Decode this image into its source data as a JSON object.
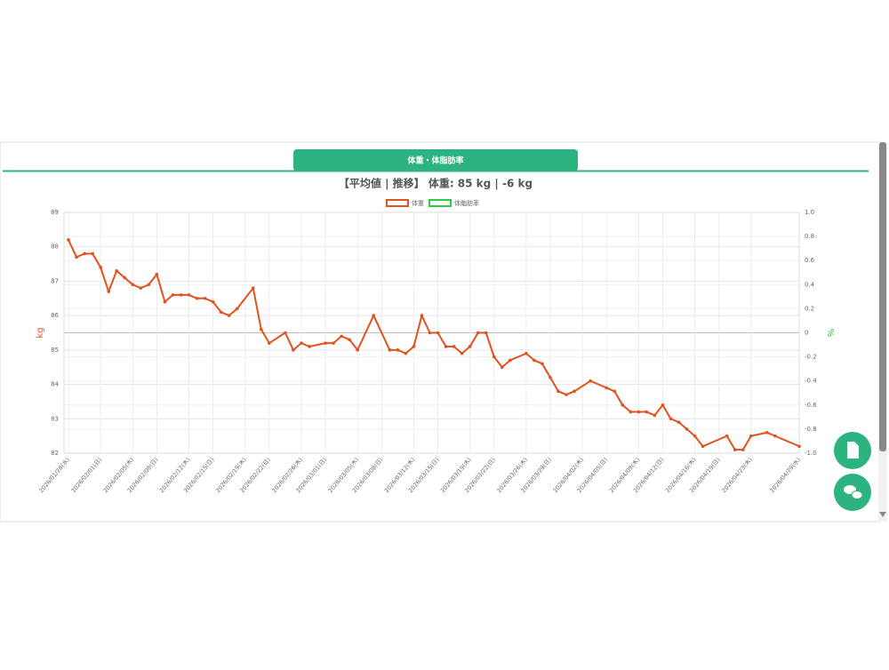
{
  "tab": "体重・体脂肪率",
  "chart_data": {
    "type": "line",
    "title": "【平均値 | 推移】 体重: 85 kg | -6 kg",
    "ylabel": "kg",
    "y2label": "%",
    "x": [
      "2026-01-28",
      "2026-01-29",
      "2026-01-30",
      "2026-01-31",
      "2026-02-01",
      "2026-02-02",
      "2026-02-03",
      "2026-02-04",
      "2026-02-05",
      "2026-02-06",
      "2026-02-07",
      "2026-02-08",
      "2026-02-09",
      "2026-02-10",
      "2026-02-11",
      "2026-02-12",
      "2026-02-13",
      "2026-02-14",
      "2026-02-15",
      "2026-02-16",
      "2026-02-17",
      "2026-02-18",
      "2026-02-20",
      "2026-02-21",
      "2026-02-22",
      "2026-02-24",
      "2026-02-25",
      "2026-02-26",
      "2026-02-27",
      "2026-03-01",
      "2026-03-02",
      "2026-03-03",
      "2026-03-04",
      "2026-03-05",
      "2026-03-07",
      "2026-03-09",
      "2026-03-10",
      "2026-03-11",
      "2026-03-12",
      "2026-03-13",
      "2026-03-14",
      "2026-03-15",
      "2026-03-16",
      "2026-03-17",
      "2026-03-18",
      "2026-03-19",
      "2026-03-20",
      "2026-03-21",
      "2026-03-22",
      "2026-03-23",
      "2026-03-24",
      "2026-03-26",
      "2026-03-27",
      "2026-03-28",
      "2026-03-29",
      "2026-03-30",
      "2026-03-31",
      "2026-04-01",
      "2026-04-03",
      "2026-04-05",
      "2026-04-06",
      "2026-04-07",
      "2026-04-08",
      "2026-04-09",
      "2026-04-10",
      "2026-04-11",
      "2026-04-12",
      "2026-04-13",
      "2026-04-14",
      "2026-04-15",
      "2026-04-16",
      "2026-04-17",
      "2026-04-20",
      "2026-04-21",
      "2026-04-22",
      "2026-04-23",
      "2026-04-25",
      "2026-04-26",
      "2026-04-29"
    ],
    "series": [
      {
        "name": "体重",
        "color": "#e0531f",
        "values": [
          88.2,
          87.7,
          87.8,
          87.8,
          87.4,
          86.7,
          87.3,
          87.1,
          86.9,
          86.8,
          86.9,
          87.2,
          86.4,
          86.6,
          86.6,
          86.6,
          86.5,
          86.5,
          86.4,
          86.1,
          86.0,
          86.2,
          86.8,
          85.6,
          85.2,
          85.5,
          85.0,
          85.2,
          85.1,
          85.2,
          85.2,
          85.4,
          85.3,
          85.0,
          86.0,
          85.0,
          85.0,
          84.9,
          85.1,
          86.0,
          85.5,
          85.5,
          85.1,
          85.1,
          84.9,
          85.1,
          85.5,
          85.5,
          84.8,
          84.5,
          84.7,
          84.9,
          84.7,
          84.6,
          84.2,
          83.8,
          83.7,
          83.8,
          84.1,
          83.9,
          83.8,
          83.4,
          83.2,
          83.2,
          83.2,
          83.1,
          83.4,
          83.0,
          82.9,
          82.7,
          82.5,
          82.2,
          82.5,
          82.1,
          82.1,
          82.5,
          82.6,
          82.5,
          82.2
        ]
      },
      {
        "name": "体脂肪率",
        "color": "#2ecc40",
        "axis": "y2",
        "values": [
          null,
          null,
          null,
          null,
          null,
          null,
          null,
          null,
          null,
          null,
          null,
          null,
          null,
          null,
          null,
          null,
          null,
          null,
          null,
          null,
          null,
          null,
          null,
          null,
          null,
          null,
          null,
          null,
          null,
          null,
          null,
          null,
          null,
          null,
          null,
          null,
          null,
          null,
          null,
          null,
          null,
          null,
          null,
          null,
          null,
          null,
          null,
          null,
          null,
          null,
          null,
          null,
          null,
          null,
          null,
          null,
          null,
          null,
          null,
          null,
          null,
          null,
          null,
          null,
          null,
          null,
          null,
          null,
          null,
          null,
          null,
          null,
          null,
          null,
          null,
          null,
          null,
          null,
          null
        ]
      }
    ],
    "xlim": [
      "2026-01-28",
      "2026-04-29"
    ],
    "xticks": [
      {
        "value": "2026-01-28",
        "label": "2026/01/28(水)"
      },
      {
        "value": "2026-02-01",
        "label": "2026/02/01(日)"
      },
      {
        "value": "2026-02-05",
        "label": "2026/02/05(木)"
      },
      {
        "value": "2026-02-08",
        "label": "2026/02/08(日)"
      },
      {
        "value": "2026-02-12",
        "label": "2026/02/12(木)"
      },
      {
        "value": "2026-02-15",
        "label": "2026/02/15(日)"
      },
      {
        "value": "2026-02-19",
        "label": "2026/02/19(木)"
      },
      {
        "value": "2026-02-22",
        "label": "2026/02/22(日)"
      },
      {
        "value": "2026-02-26",
        "label": "2026/02/26(木)"
      },
      {
        "value": "2026-03-01",
        "label": "2026/03/01(日)"
      },
      {
        "value": "2026-03-05",
        "label": "2026/03/05(木)"
      },
      {
        "value": "2026-03-08",
        "label": "2026/03/08(日)"
      },
      {
        "value": "2026-03-12",
        "label": "2026/03/12(木)"
      },
      {
        "value": "2026-03-15",
        "label": "2026/03/15(日)"
      },
      {
        "value": "2026-03-19",
        "label": "2026/03/19(木)"
      },
      {
        "value": "2026-03-22",
        "label": "2026/03/22(日)"
      },
      {
        "value": "2026-03-26",
        "label": "2026/03/26(木)"
      },
      {
        "value": "2026-03-29",
        "label": "2026/03/29(日)"
      },
      {
        "value": "2026-04-02",
        "label": "2026/04/02(木)"
      },
      {
        "value": "2026-04-05",
        "label": "2026/04/05(日)"
      },
      {
        "value": "2026-04-09",
        "label": "2026/04/09(木)"
      },
      {
        "value": "2026-04-12",
        "label": "2026/04/12(日)"
      },
      {
        "value": "2026-04-16",
        "label": "2026/04/16(木)"
      },
      {
        "value": "2026-04-19",
        "label": "2026/04/19(日)"
      },
      {
        "value": "2026-04-23",
        "label": "2026/04/23(木)"
      },
      {
        "value": "2026-04-29",
        "label": "2026/04/29(水)"
      }
    ],
    "ylim": [
      82,
      89
    ],
    "yticks": [
      82,
      83,
      84,
      85,
      86,
      87,
      88,
      89
    ],
    "y2lim": [
      -1,
      1
    ],
    "y2ticks": [
      {
        "value": -1,
        "label": "-1.0"
      },
      -0.8,
      -0.6,
      -0.4,
      -0.2,
      0,
      0.2,
      0.4,
      0.6,
      0.8,
      {
        "value": 1,
        "label": "1.0"
      }
    ],
    "grid": true,
    "legend": "top"
  }
}
